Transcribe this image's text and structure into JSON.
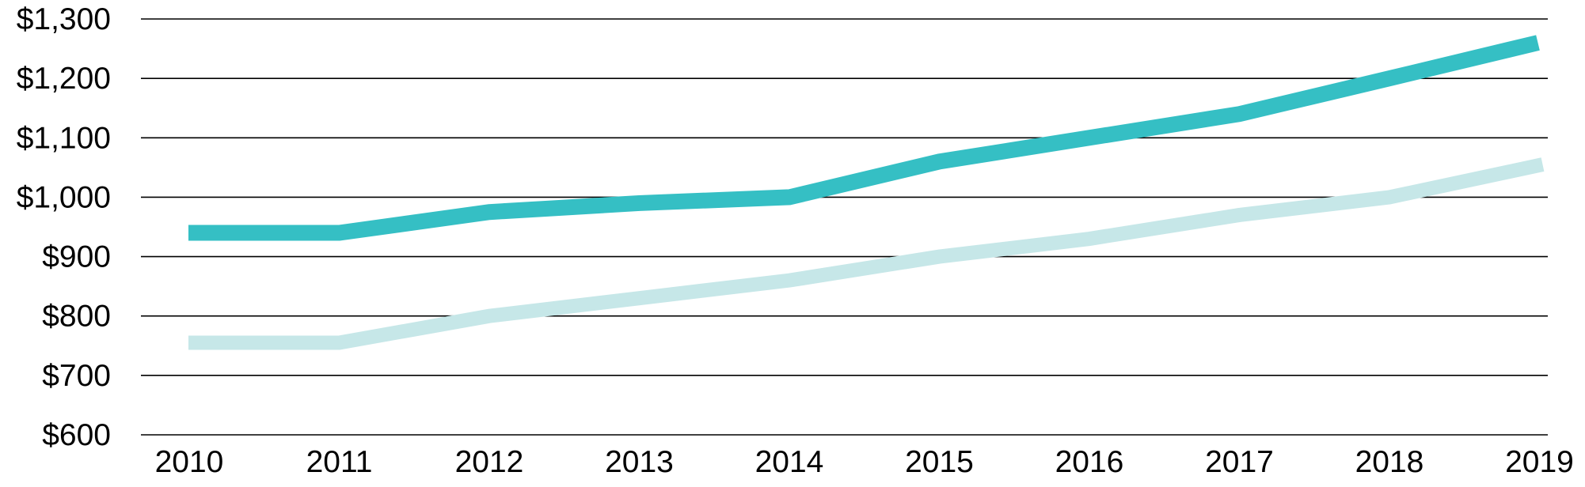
{
  "chart_data": {
    "type": "line",
    "categories": [
      "2010",
      "2011",
      "2012",
      "2013",
      "2014",
      "2015",
      "2016",
      "2017",
      "2018",
      "2019"
    ],
    "series": [
      {
        "color": "#35bfc4",
        "values": [
          940,
          940,
          975,
          990,
          1000,
          1060,
          1100,
          1140,
          1200,
          1260
        ]
      },
      {
        "color": "#c6e7e8",
        "values": [
          755,
          755,
          800,
          830,
          860,
          900,
          930,
          970,
          1000,
          1055
        ]
      }
    ],
    "yticks": [
      600,
      700,
      800,
      900,
      1000,
      1100,
      1200,
      1300
    ],
    "ytick_labels": [
      "$600",
      "$700",
      "$800",
      "$900",
      "$1,000",
      "$1,100",
      "$1,200",
      "$1,300"
    ],
    "ylim": [
      600,
      1300
    ],
    "grid": true,
    "title": "",
    "xlabel": "",
    "ylabel": ""
  }
}
